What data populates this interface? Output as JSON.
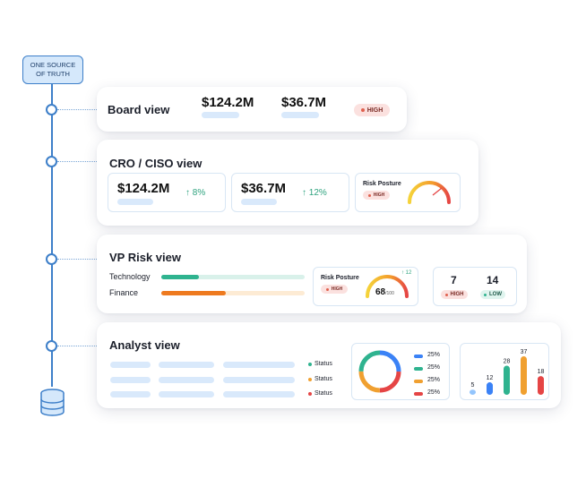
{
  "source": {
    "label_line1": "ONE SOURCE",
    "label_line2": "OF TRUTH",
    "icon": "database-icon"
  },
  "board": {
    "title": "Board view",
    "value1": "$124.2M",
    "value2": "$36.7M",
    "badge": "HIGH"
  },
  "cro": {
    "title": "CRO / CISO view",
    "card1": {
      "value": "$124.2M",
      "change": "8%"
    },
    "card2": {
      "value": "$36.7M",
      "change": "12%"
    },
    "risk": {
      "label": "Risk Posture",
      "badge": "HIGH"
    }
  },
  "vp": {
    "title": "VP Risk view",
    "bars": [
      {
        "label": "Technology",
        "fill": 0.26,
        "color": "#2fb38f",
        "track": "#d9f1ea"
      },
      {
        "label": "Finance",
        "fill": 0.45,
        "color": "#ee7a1f",
        "track": "#fdebd4"
      }
    ],
    "risk": {
      "label": "Risk Posture",
      "badge": "HIGH",
      "score": "68",
      "max": "/100",
      "delta": "12"
    },
    "counts": [
      {
        "value": "7",
        "badge": "HIGH"
      },
      {
        "value": "14",
        "badge": "LOW"
      }
    ]
  },
  "analyst": {
    "title": "Analyst view",
    "status_rows": [
      {
        "label": "Status",
        "color": "#2fb38f"
      },
      {
        "label": "Status",
        "color": "#f0a030"
      },
      {
        "label": "Status",
        "color": "#e54545"
      }
    ],
    "donut_legend": [
      {
        "label": "25%",
        "color": "#3b82f6"
      },
      {
        "label": "25%",
        "color": "#2fb38f"
      },
      {
        "label": "25%",
        "color": "#f0a030"
      },
      {
        "label": "25%",
        "color": "#e54545"
      }
    ]
  },
  "chart_data": {
    "type": "bar",
    "categories": [
      "",
      "",
      "",
      "",
      ""
    ],
    "values": [
      5,
      12,
      28,
      37,
      18
    ],
    "colors": [
      "#93c5fd",
      "#3b82f6",
      "#2fb38f",
      "#f0a030",
      "#e54545"
    ],
    "ylim": [
      0,
      37
    ]
  }
}
